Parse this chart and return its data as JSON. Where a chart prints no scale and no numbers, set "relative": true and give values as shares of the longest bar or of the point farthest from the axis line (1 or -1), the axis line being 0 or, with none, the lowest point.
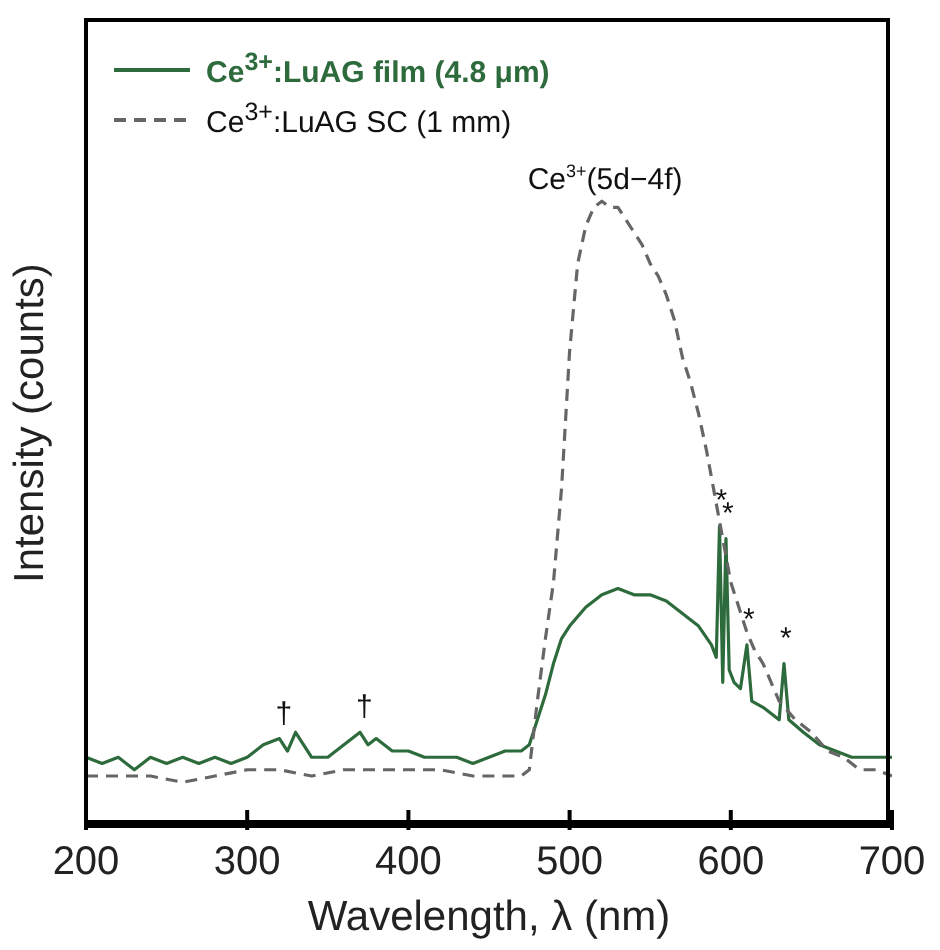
{
  "chart_data": {
    "type": "line",
    "relative": true,
    "xlabel": "Wavelength, λ (nm)",
    "ylabel": "Intensity (counts)",
    "xlim": [
      200,
      700
    ],
    "xticks": [
      200,
      300,
      400,
      500,
      600,
      700
    ],
    "legend": "top left",
    "marker": "none",
    "series": [
      {
        "name": "Ce$^{3+}$:LuAG film (4.8 μm)",
        "color": "#2e6b3c",
        "line_style": "solid",
        "x": [
          200,
          210,
          220,
          230,
          240,
          250,
          260,
          270,
          280,
          290,
          300,
          310,
          320,
          325,
          330,
          340,
          350,
          360,
          370,
          375,
          380,
          390,
          400,
          410,
          420,
          430,
          440,
          450,
          460,
          470,
          475,
          480,
          485,
          490,
          495,
          500,
          510,
          520,
          530,
          540,
          550,
          560,
          570,
          580,
          588,
          591,
          593,
          595,
          597,
          599,
          602,
          606,
          610,
          613,
          620,
          630,
          633,
          636,
          645,
          655,
          665,
          675,
          685,
          700
        ],
        "values": [
          0.11,
          0.1,
          0.11,
          0.09,
          0.11,
          0.1,
          0.11,
          0.1,
          0.11,
          0.1,
          0.11,
          0.13,
          0.14,
          0.12,
          0.15,
          0.11,
          0.11,
          0.13,
          0.15,
          0.13,
          0.14,
          0.12,
          0.12,
          0.11,
          0.11,
          0.11,
          0.1,
          0.11,
          0.12,
          0.12,
          0.13,
          0.17,
          0.21,
          0.26,
          0.3,
          0.32,
          0.35,
          0.37,
          0.38,
          0.37,
          0.37,
          0.36,
          0.34,
          0.32,
          0.29,
          0.27,
          0.48,
          0.23,
          0.46,
          0.25,
          0.23,
          0.22,
          0.29,
          0.2,
          0.19,
          0.17,
          0.26,
          0.17,
          0.15,
          0.13,
          0.12,
          0.11,
          0.11,
          0.11
        ]
      },
      {
        "name": "Ce$^{3+}$:LuAG SC (1 mm)",
        "color": "#666666",
        "line_style": "dashed",
        "x": [
          200,
          220,
          240,
          260,
          280,
          300,
          320,
          340,
          360,
          380,
          400,
          420,
          440,
          460,
          470,
          475,
          480,
          485,
          490,
          495,
          500,
          505,
          510,
          515,
          520,
          525,
          530,
          535,
          540,
          545,
          550,
          555,
          560,
          565,
          570,
          575,
          580,
          585,
          590,
          595,
          600,
          605,
          610,
          615,
          620,
          625,
          630,
          640,
          650,
          660,
          670,
          680,
          690,
          700
        ],
        "values": [
          0.08,
          0.08,
          0.08,
          0.07,
          0.08,
          0.09,
          0.09,
          0.08,
          0.09,
          0.09,
          0.09,
          0.09,
          0.08,
          0.08,
          0.08,
          0.09,
          0.2,
          0.3,
          0.39,
          0.54,
          0.76,
          0.9,
          0.96,
          0.99,
          1.0,
          0.99,
          0.99,
          0.97,
          0.95,
          0.93,
          0.9,
          0.88,
          0.85,
          0.81,
          0.75,
          0.71,
          0.66,
          0.6,
          0.53,
          0.46,
          0.39,
          0.35,
          0.31,
          0.28,
          0.26,
          0.23,
          0.2,
          0.17,
          0.15,
          0.12,
          0.11,
          0.09,
          0.09,
          0.08
        ]
      }
    ],
    "annotations": [
      {
        "text": "Ce$^{3+}$(5d−4f)",
        "x": 522,
        "y": 1.0
      },
      {
        "text": "*",
        "x": 593,
        "y": 0.48
      },
      {
        "text": "*",
        "x": 597,
        "y": 0.46
      },
      {
        "text": "*",
        "x": 610,
        "y": 0.29
      },
      {
        "text": "*",
        "x": 633,
        "y": 0.26
      },
      {
        "text": "†",
        "x": 320,
        "y": 0.14
      },
      {
        "text": "†",
        "x": 370,
        "y": 0.15
      }
    ]
  }
}
